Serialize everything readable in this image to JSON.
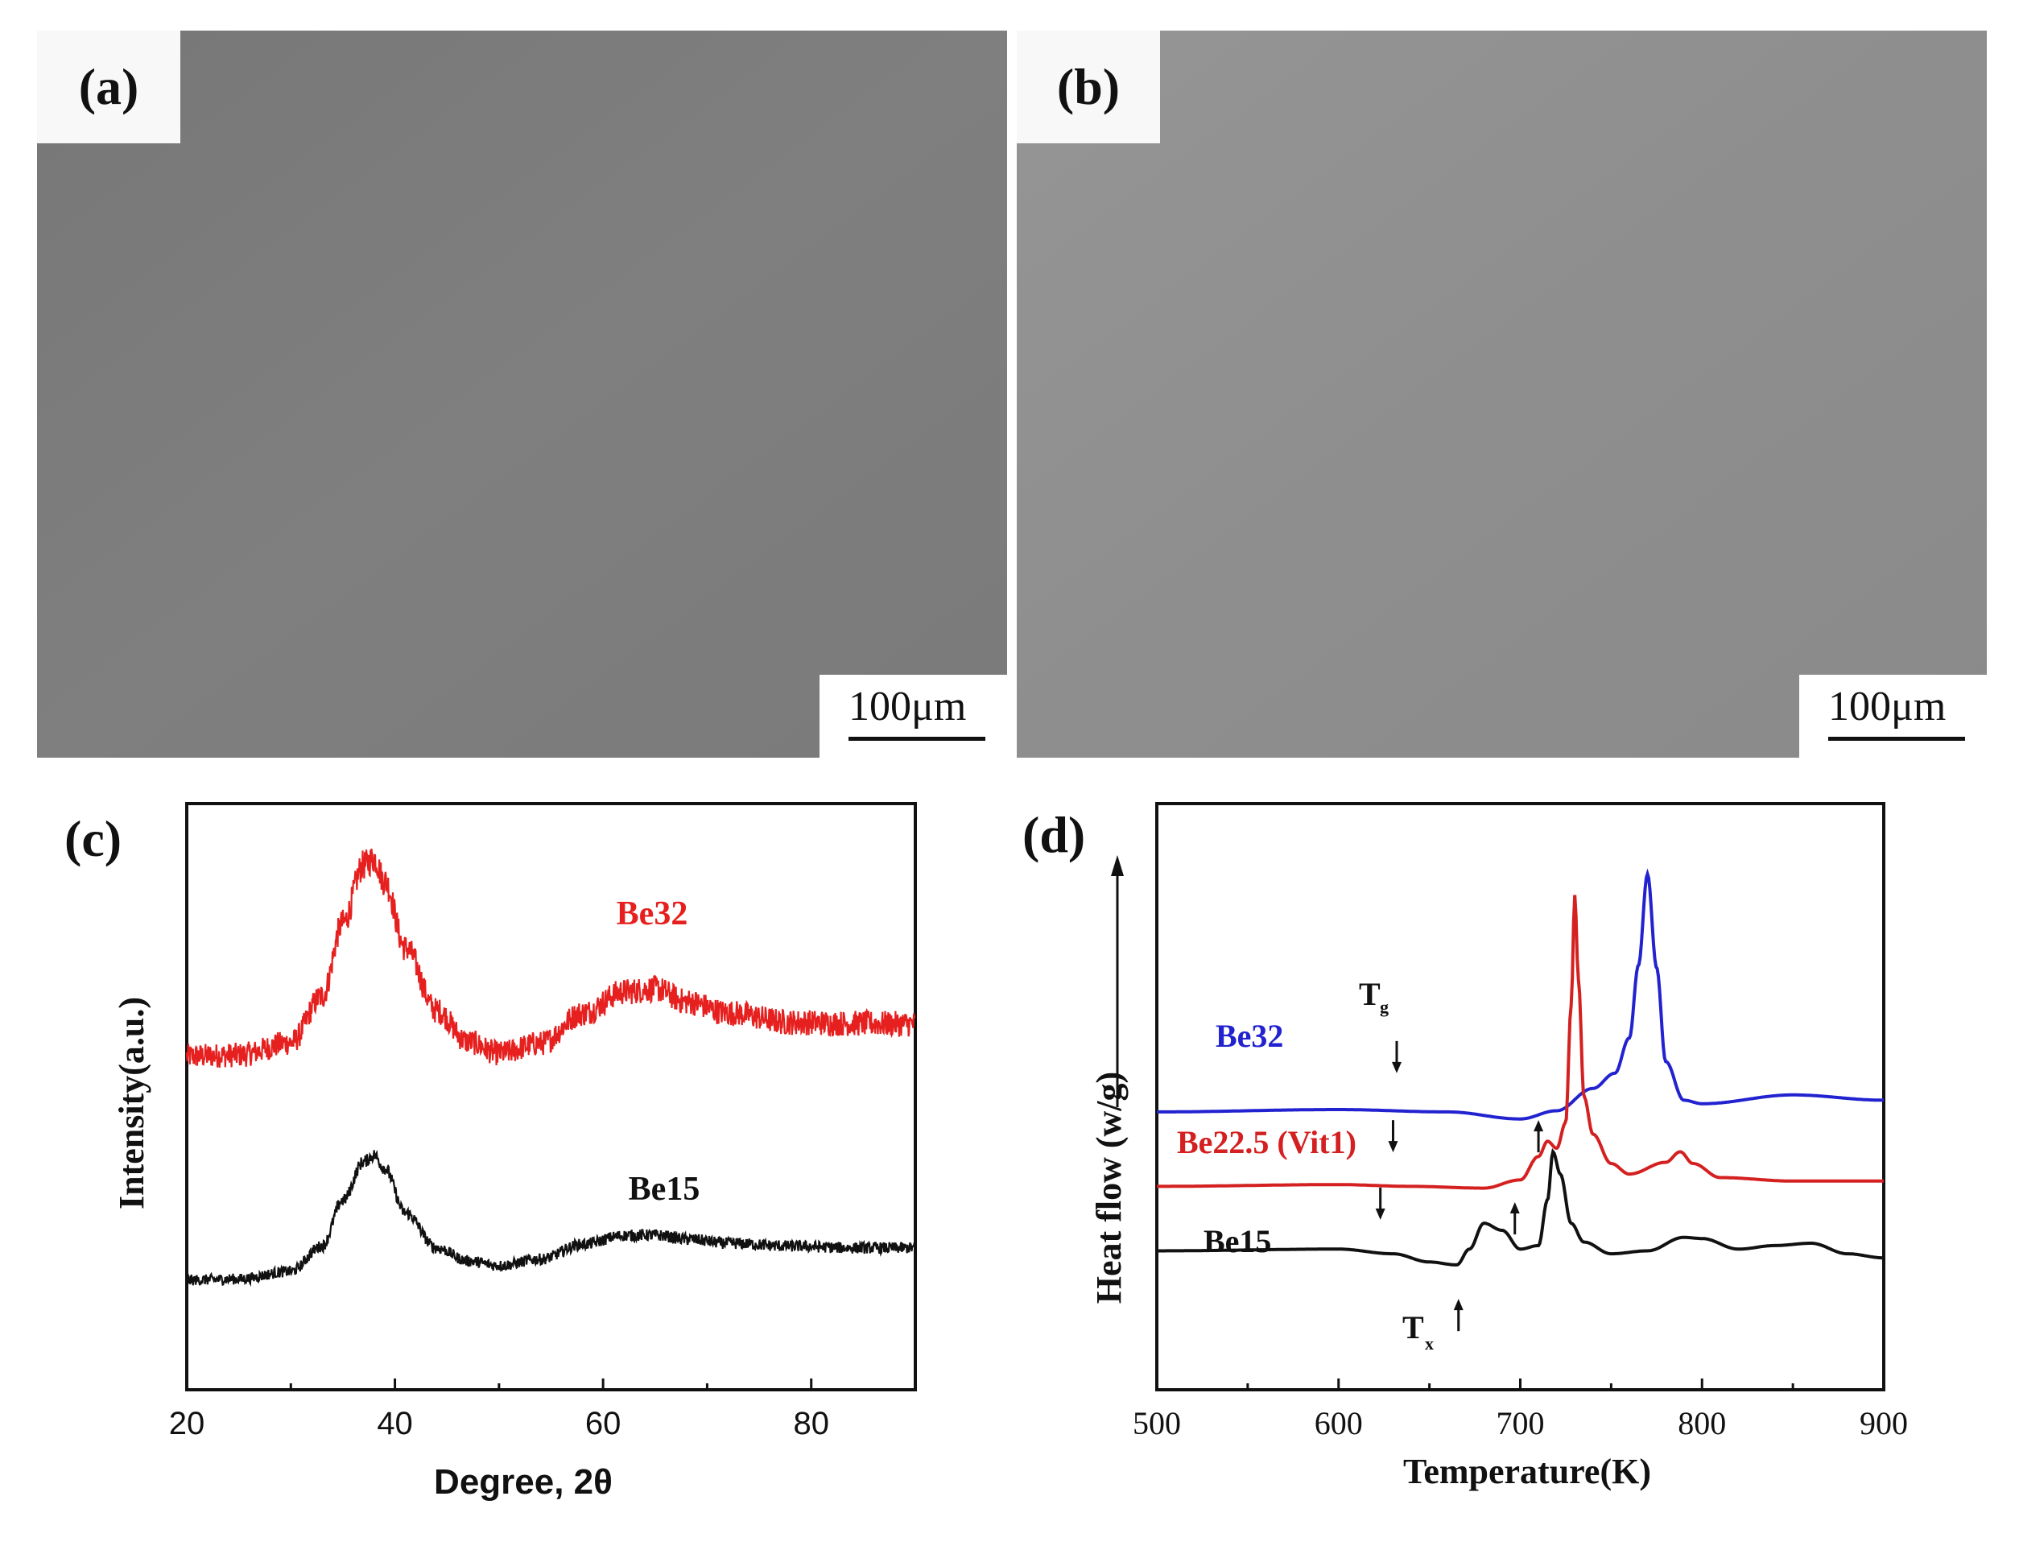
{
  "panels": {
    "a": {
      "label": "(a)",
      "scale_bar": "100μm"
    },
    "b": {
      "label": "(b)",
      "scale_bar": "100μm"
    },
    "c": {
      "label": "(c)"
    },
    "d": {
      "label": "(d)"
    }
  },
  "colors": {
    "background": "#ffffff",
    "micrograph_a": "#7e7e7e",
    "micrograph_b": "#8f8f8f",
    "be32_xrd": "#e6201f",
    "be15_xrd": "#111111",
    "be32_dsc": "#2222d0",
    "be22_dsc": "#d42020",
    "be15_dsc": "#111111"
  },
  "chart_data": [
    {
      "panel": "c",
      "type": "line",
      "title": "",
      "xlabel": "Degree, 2θ",
      "ylabel": "Intensity(a.u.)",
      "xlim": [
        20,
        90
      ],
      "ylim": [
        0,
        100
      ],
      "xticks": [
        "20",
        "40",
        "60",
        "80"
      ],
      "grid": false,
      "legend": "inline labels",
      "series": [
        {
          "name": "Be32",
          "x": [
            20,
            25,
            30,
            33,
            35,
            37,
            38,
            39,
            41,
            44,
            47,
            50,
            54,
            58,
            62,
            65,
            68,
            72,
            78,
            84,
            90
          ],
          "values": [
            56.9,
            57.1,
            59.2,
            67.1,
            79.6,
            89.5,
            90.6,
            86.8,
            75.4,
            64.7,
            59.4,
            57.4,
            59.1,
            64.2,
            67.9,
            68.4,
            66.2,
            64.3,
            62.7,
            62.5,
            62.4
          ]
        },
        {
          "name": "Be15",
          "x": [
            20,
            25,
            30,
            33,
            35,
            37,
            38,
            39,
            41,
            44,
            47,
            50,
            54,
            58,
            62,
            65,
            68,
            72,
            78,
            84,
            90
          ],
          "values": [
            18.7,
            18.9,
            20.2,
            24.5,
            32.3,
            38.9,
            40.0,
            37.8,
            30.2,
            24.2,
            22.0,
            21.2,
            22.3,
            24.8,
            26.3,
            26.4,
            25.7,
            25.0,
            24.5,
            24.2,
            24.2
          ]
        }
      ],
      "annotations": [
        "Be32",
        "Be15"
      ]
    },
    {
      "panel": "d",
      "type": "line",
      "title": "",
      "xlabel": "Temperature(K)",
      "ylabel": "Heat flow  (w/g)",
      "xlim": [
        500,
        900
      ],
      "ylim": [
        0,
        100
      ],
      "xticks": [
        "500",
        "600",
        "700",
        "800",
        "900"
      ],
      "grid": false,
      "legend": "inline labels",
      "series": [
        {
          "name": "Be32",
          "x": [
            500,
            600,
            660,
            700,
            720,
            740,
            752,
            760,
            765,
            770,
            775,
            780,
            790,
            800,
            850,
            900
          ],
          "values": [
            47.4,
            47.8,
            47.4,
            46.2,
            47.6,
            51.4,
            54.0,
            60.0,
            72.4,
            88.0,
            72.0,
            56.0,
            49.4,
            48.8,
            50.3,
            49.4
          ]
        },
        {
          "name": "Be22.5 (Vit1)",
          "x": [
            500,
            600,
            640,
            680,
            700,
            710,
            715,
            720,
            725,
            728,
            730,
            732,
            735,
            740,
            750,
            760,
            780,
            788,
            795,
            810,
            850,
            900
          ],
          "values": [
            34.7,
            35.0,
            34.7,
            34.4,
            35.8,
            39.8,
            42.4,
            41.2,
            45.6,
            65.6,
            84.4,
            70.0,
            50.0,
            43.6,
            38.6,
            36.8,
            38.8,
            40.6,
            38.6,
            36.2,
            35.6,
            35.6
          ]
        },
        {
          "name": "Be15",
          "x": [
            500,
            600,
            630,
            650,
            665,
            672,
            680,
            690,
            700,
            710,
            715,
            718,
            722,
            728,
            735,
            750,
            770,
            790,
            800,
            820,
            840,
            860,
            880,
            900
          ],
          "values": [
            23.7,
            24.0,
            23.2,
            21.8,
            21.3,
            24.0,
            28.4,
            27.2,
            24.0,
            24.6,
            32.4,
            40.6,
            36.8,
            28.4,
            25.2,
            23.2,
            23.7,
            26.0,
            25.8,
            24.0,
            24.6,
            25.0,
            23.2,
            22.5
          ]
        }
      ],
      "annotations": [
        "Be32",
        "Be22.5 (Vit1)",
        "Be15",
        "T",
        "g",
        "T",
        "x"
      ]
    }
  ]
}
